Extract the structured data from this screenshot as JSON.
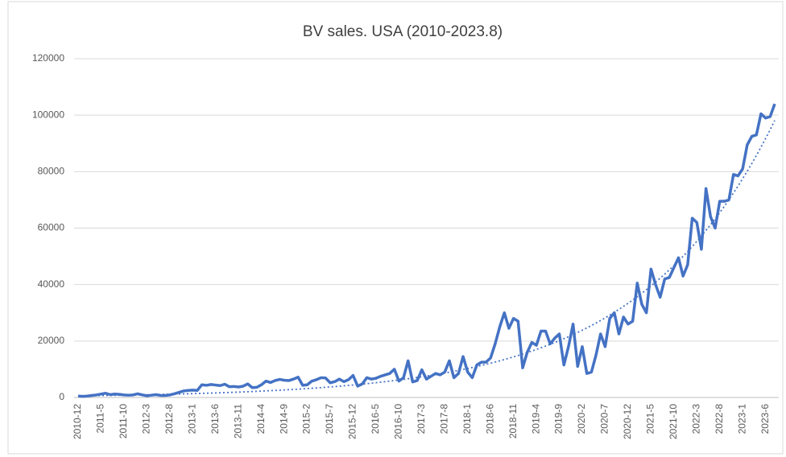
{
  "chart_data": {
    "type": "line",
    "title": "BV sales. USA (2010-2023.8)",
    "categories": [
      "2010-12",
      null,
      null,
      null,
      null,
      "2011-5",
      null,
      null,
      null,
      null,
      "2011-10",
      null,
      null,
      null,
      null,
      "2012-3",
      null,
      null,
      null,
      null,
      "2012-8",
      null,
      null,
      null,
      null,
      "2013-1",
      null,
      null,
      null,
      null,
      "2013-6",
      null,
      null,
      null,
      null,
      "2013-11",
      null,
      null,
      null,
      null,
      "2014-4",
      null,
      null,
      null,
      null,
      "2014-9",
      null,
      null,
      null,
      null,
      "2015-2",
      null,
      null,
      null,
      null,
      "2015-7",
      null,
      null,
      null,
      null,
      "2015-12",
      null,
      null,
      null,
      null,
      "2016-5",
      null,
      null,
      null,
      null,
      "2016-10",
      null,
      null,
      null,
      null,
      "2017-3",
      null,
      null,
      null,
      null,
      "2017-8",
      null,
      null,
      null,
      null,
      "2018-1",
      null,
      null,
      null,
      null,
      "2018-6",
      null,
      null,
      null,
      null,
      "2018-11",
      null,
      null,
      null,
      null,
      "2019-4",
      null,
      null,
      null,
      null,
      "2019-9",
      null,
      null,
      null,
      null,
      "2020-2",
      null,
      null,
      null,
      null,
      "2020-7",
      null,
      null,
      null,
      null,
      "2020-12",
      null,
      null,
      null,
      null,
      "2021-5",
      null,
      null,
      null,
      null,
      "2021-10",
      null,
      null,
      null,
      null,
      "2022-3",
      null,
      null,
      null,
      null,
      "2022-8",
      null,
      null,
      null,
      null,
      "2023-1",
      null,
      null,
      null,
      null,
      "2023-6",
      null,
      null
    ],
    "series": [
      {
        "color": "#4472c4",
        "style": "solid",
        "values": [
          500,
          400,
          500,
          700,
          900,
          1200,
          1500,
          1000,
          1200,
          1100,
          900,
          800,
          900,
          1300,
          900,
          600,
          800,
          1000,
          700,
          700,
          900,
          1300,
          1800,
          2300,
          2500,
          2600,
          2500,
          4500,
          4300,
          4600,
          4400,
          4200,
          4700,
          3800,
          3900,
          3700,
          4000,
          4800,
          3500,
          3600,
          4500,
          5800,
          5300,
          6000,
          6400,
          6100,
          6000,
          6500,
          7200,
          4300,
          4500,
          5800,
          6300,
          7000,
          6900,
          5200,
          5600,
          6500,
          5600,
          6300,
          7800,
          4000,
          4800,
          7000,
          6500,
          6800,
          7500,
          8000,
          8500,
          10000,
          5800,
          7000,
          13000,
          5500,
          6000,
          9800,
          6500,
          7500,
          8500,
          8000,
          9000,
          13000,
          7000,
          8500,
          14500,
          9000,
          7000,
          11500,
          12500,
          12500,
          14000,
          19000,
          25000,
          30000,
          24500,
          28000,
          27000,
          10500,
          16000,
          19500,
          18500,
          23500,
          23500,
          19000,
          21000,
          22500,
          11500,
          18000,
          26000,
          11000,
          18000,
          8500,
          9000,
          15000,
          22500,
          18000,
          28000,
          30000,
          22500,
          28500,
          26000,
          27000,
          40500,
          33000,
          30000,
          45500,
          40000,
          35500,
          42000,
          42500,
          46000,
          49500,
          43000,
          47000,
          63500,
          62000,
          52500,
          74000,
          64000,
          60000,
          69500,
          69500,
          70000,
          79000,
          78500,
          81000,
          89500,
          92500,
          93000,
          100500,
          99000,
          99500,
          104000
        ]
      },
      {
        "color": "#4472c4",
        "style": "dotted",
        "values": [
          585,
          605,
          626,
          647,
          669,
          692,
          716,
          741,
          766,
          792,
          819,
          847,
          876,
          906,
          937,
          969,
          1003,
          1037,
          1072,
          1109,
          1148,
          1187,
          1228,
          1270,
          1314,
          1359,
          1405,
          1453,
          1503,
          1555,
          1608,
          1663,
          1720,
          1779,
          1840,
          1903,
          1968,
          2036,
          2106,
          2178,
          2252,
          2329,
          2409,
          2492,
          2577,
          2665,
          2757,
          2851,
          2949,
          3050,
          3155,
          3263,
          3375,
          3491,
          3610,
          3734,
          3862,
          3994,
          4131,
          4273,
          4419,
          4571,
          4727,
          4889,
          5057,
          5230,
          5409,
          5594,
          5786,
          5985,
          6190,
          6402,
          6622,
          6849,
          7083,
          7326,
          7577,
          7837,
          8105,
          8383,
          8670,
          8967,
          9274,
          9593,
          9921,
          10261,
          10613,
          10976,
          11353,
          11742,
          12144,
          12560,
          12991,
          13436,
          13897,
          14373,
          14865,
          15374,
          15902,
          16447,
          17010,
          17593,
          18196,
          18820,
          19465,
          20132,
          20822,
          21535,
          22273,
          23036,
          23826,
          24643,
          25487,
          26361,
          27264,
          28198,
          29165,
          30164,
          31198,
          32267,
          33374,
          34518,
          35701,
          36924,
          38190,
          39498,
          40852,
          42252,
          43700,
          45198,
          46747,
          48349,
          50006,
          51720,
          53492,
          55325,
          57222,
          59183,
          61211,
          63309,
          65479,
          67723,
          70044,
          72444,
          74927,
          77495,
          80151,
          82898,
          85739,
          88677,
          91717,
          94860,
          98111
        ]
      }
    ],
    "ylim": [
      0,
      120000
    ],
    "yticks": [
      0,
      20000,
      40000,
      60000,
      80000,
      100000,
      120000
    ],
    "grid": true
  }
}
